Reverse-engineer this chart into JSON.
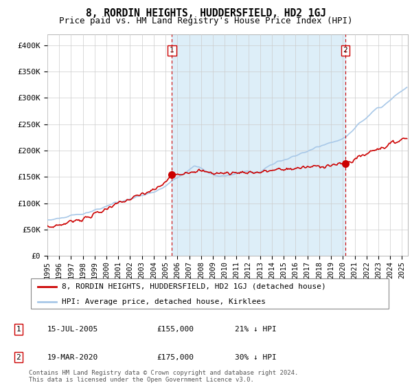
{
  "title": "8, RORDIN HEIGHTS, HUDDERSFIELD, HD2 1GJ",
  "subtitle": "Price paid vs. HM Land Registry's House Price Index (HPI)",
  "ylabel_ticks": [
    "£0",
    "£50K",
    "£100K",
    "£150K",
    "£200K",
    "£250K",
    "£300K",
    "£350K",
    "£400K"
  ],
  "ytick_values": [
    0,
    50000,
    100000,
    150000,
    200000,
    250000,
    300000,
    350000,
    400000
  ],
  "ylim": [
    0,
    420000
  ],
  "xlim_start": 1995.0,
  "xlim_end": 2025.5,
  "hpi_color": "#a8c8e8",
  "hpi_fill_color": "#ddeef8",
  "sale_color": "#cc0000",
  "vline_color": "#cc0000",
  "vline_style": "--",
  "sale1_x": 2005.54,
  "sale1_y": 155000,
  "sale2_x": 2020.21,
  "sale2_y": 175000,
  "marker_size": 7,
  "grid_color": "#cccccc",
  "background_color": "#ffffff",
  "legend_label_red": "8, RORDIN HEIGHTS, HUDDERSFIELD, HD2 1GJ (detached house)",
  "legend_label_blue": "HPI: Average price, detached house, Kirklees",
  "table_row1_num": "1",
  "table_row1_date": "15-JUL-2005",
  "table_row1_price": "£155,000",
  "table_row1_hpi": "21% ↓ HPI",
  "table_row2_num": "2",
  "table_row2_date": "19-MAR-2020",
  "table_row2_price": "£175,000",
  "table_row2_hpi": "30% ↓ HPI",
  "footer": "Contains HM Land Registry data © Crown copyright and database right 2024.\nThis data is licensed under the Open Government Licence v3.0."
}
